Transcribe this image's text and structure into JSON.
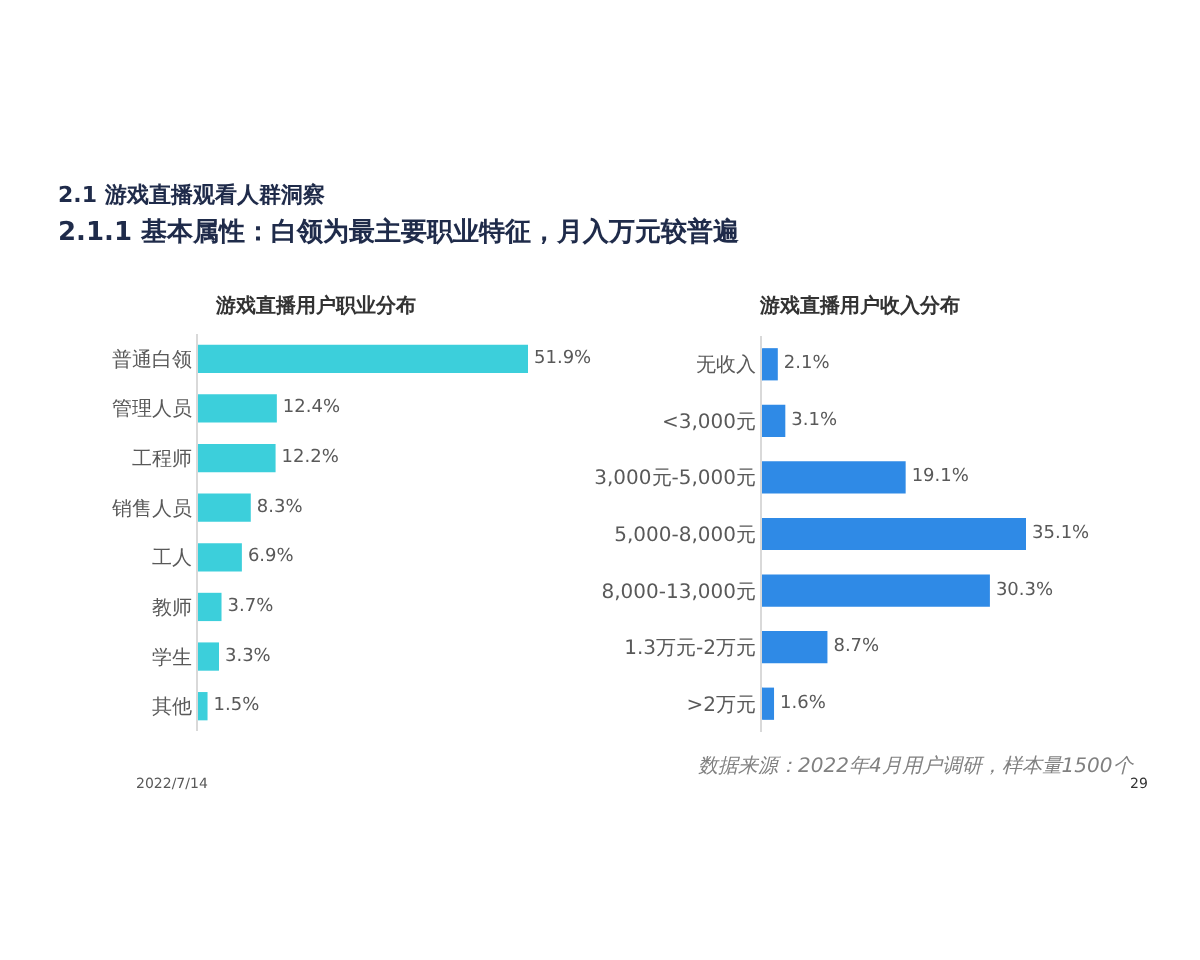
{
  "chart_data": [
    {
      "type": "other",
      "title": "2.1 游戏直播观看人群洞察",
      "subtitle": "2.1.1 基本属性：白领为最主要职业特征，月入万元较普遍"
    },
    {
      "type": "bar",
      "orientation": "horizontal",
      "title": "游戏直播用户职业分布",
      "categories": [
        "普通白领",
        "管理人员",
        "工程师",
        "销售人员",
        "工人",
        "教师",
        "学生",
        "其他"
      ],
      "values": [
        51.9,
        12.4,
        12.2,
        8.3,
        6.9,
        3.7,
        3.3,
        1.5
      ],
      "value_labels": [
        "51.9%",
        "12.4%",
        "12.2%",
        "8.3%",
        "6.9%",
        "3.7%",
        "3.3%",
        "1.5%"
      ],
      "color": "#3ccfdb",
      "tick_labels": "y"
    },
    {
      "type": "bar",
      "orientation": "horizontal",
      "title": "游戏直播用户收入分布",
      "categories": [
        "无收入",
        "<3,000元",
        "3,000元-5,000元",
        "5,000-8,000元",
        "8,000-13,000元",
        "1.3万元-2万元",
        ">2万元"
      ],
      "values": [
        2.1,
        3.1,
        19.1,
        35.1,
        30.3,
        8.7,
        1.6
      ],
      "value_labels": [
        "2.1%",
        "3.1%",
        "19.1%",
        "35.1%",
        "30.3%",
        "8.7%",
        "1.6%"
      ],
      "color": "#2f8ae6",
      "tick_labels": "y"
    },
    {
      "type": "other",
      "annotations": [
        "2022/7/14",
        "数据来源：2022年4月用户调研，样本量1500个",
        "29"
      ]
    }
  ]
}
